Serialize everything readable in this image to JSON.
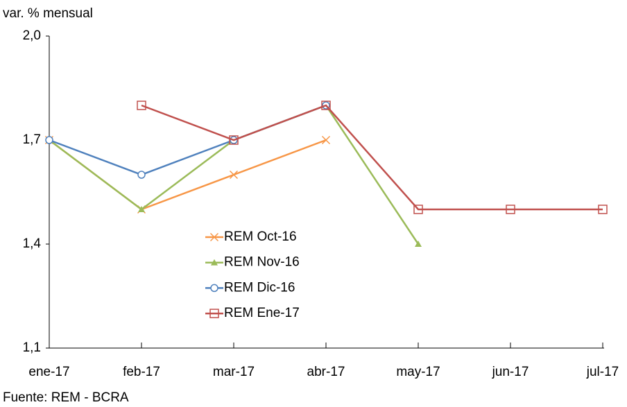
{
  "chart_data": {
    "type": "line",
    "y_label": "var. % mensual",
    "source": "Fuente: REM - BCRA",
    "categories": [
      "ene-17",
      "feb-17",
      "mar-17",
      "abr-17",
      "may-17",
      "jun-17",
      "jul-17"
    ],
    "series": [
      {
        "name": "REM Oct-16",
        "color": "#f79646",
        "marker": "x",
        "values": [
          1.7,
          1.5,
          1.6,
          1.7,
          null,
          null,
          null
        ]
      },
      {
        "name": "REM Nov-16",
        "color": "#9bbb59",
        "marker": "triangle",
        "values": [
          1.7,
          1.5,
          1.7,
          1.8,
          1.4,
          null,
          null
        ]
      },
      {
        "name": "REM Dic-16",
        "color": "#4f81bd",
        "marker": "circle",
        "values": [
          1.7,
          1.6,
          1.7,
          1.8,
          null,
          null,
          null
        ]
      },
      {
        "name": "REM Ene-17",
        "color": "#c0504d",
        "marker": "square",
        "values": [
          null,
          1.8,
          1.7,
          1.8,
          1.5,
          1.5,
          1.5
        ]
      }
    ],
    "ylim": [
      1.1,
      2.0
    ],
    "yticks": [
      {
        "value": 1.1,
        "label": "1,1"
      },
      {
        "value": 1.4,
        "label": "1,4"
      },
      {
        "value": 1.7,
        "label": "1,7"
      },
      {
        "value": 2.0,
        "label": "2,0"
      }
    ],
    "grid": false
  }
}
